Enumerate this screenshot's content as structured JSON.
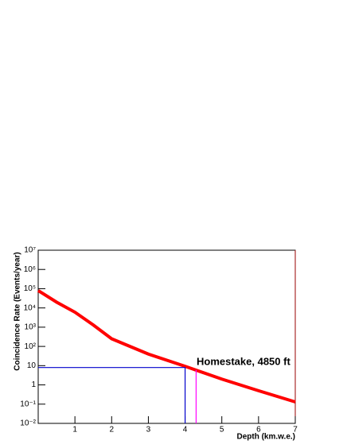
{
  "chart_data": {
    "type": "line",
    "x_label": "Depth (km.w.e.)",
    "y_label": "Coincidence Rate (Events/year)",
    "annotation": "Homestake, 4850 ft",
    "xlim": [
      0,
      7
    ],
    "xticks": [
      1,
      2,
      3,
      4,
      5,
      6,
      7
    ],
    "ylim": [
      0.01,
      10000000
    ],
    "log_y": true,
    "yticks": [
      {
        "value": 0.01,
        "label": "10⁻²"
      },
      {
        "value": 0.1,
        "label": "10⁻¹"
      },
      1,
      10,
      {
        "value": 100,
        "label": "10²"
      },
      {
        "value": 1000,
        "label": "10³"
      },
      {
        "value": 10000,
        "label": "10⁴"
      },
      {
        "value": 100000,
        "label": "10⁵"
      },
      {
        "value": 1000000,
        "label": "10⁶"
      },
      {
        "value": 10000000,
        "label": "10⁷"
      }
    ],
    "series": [
      {
        "color": "#ff0000",
        "x": [
          0,
          0.5,
          1,
          1.5,
          2,
          2.5,
          3,
          4,
          5,
          6,
          7
        ],
        "values": [
          80000,
          20000,
          6000,
          1300,
          250,
          100,
          40,
          9.3,
          2,
          0.5,
          0.13
        ]
      },
      {
        "color": "#0000cc",
        "x": [
          0,
          4,
          4
        ],
        "values": [
          8,
          8,
          0.01
        ]
      },
      {
        "color": "#ff00ff",
        "x": [
          4.3,
          4.3
        ],
        "values": [
          6,
          0.01
        ]
      }
    ]
  }
}
